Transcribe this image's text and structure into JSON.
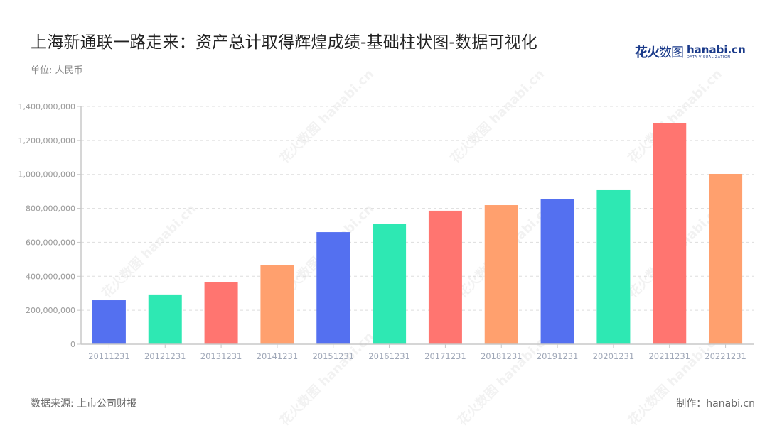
{
  "header": {
    "title": "上海新通联一路走来：资产总计取得辉煌成绩-基础柱状图-数据可视化",
    "unit": "单位: 人民币"
  },
  "logo": {
    "cn_bold": "花火",
    "cn_thin": "数图",
    "en": "hanabi.cn",
    "tagline": "DATA VISUALIZATION"
  },
  "footer": {
    "source": "数据来源: 上市公司财报",
    "credit": "制作：hanabi.cn"
  },
  "colors": {
    "palette": [
      "#5470f0",
      "#2ee8b3",
      "#ff7570",
      "#ffa06e"
    ],
    "axis": "#c8c8c8",
    "grid": "#dddddd",
    "tick_label": "#999999",
    "category_label": "#a0a8b8"
  },
  "chart_data": {
    "type": "bar",
    "title": "上海新通联一路走来：资产总计取得辉煌成绩-基础柱状图-数据可视化",
    "xlabel": "",
    "ylabel": "单位: 人民币",
    "ylim": [
      0,
      1400000000
    ],
    "yticks": [
      0,
      200000000,
      400000000,
      600000000,
      800000000,
      1000000000,
      1200000000,
      1400000000
    ],
    "ytick_labels": [
      "0",
      "200,000,000",
      "400,000,000",
      "600,000,000",
      "800,000,000",
      "1,000,000,000",
      "1,200,000,000",
      "1,400,000,000"
    ],
    "grid": true,
    "legend": "none",
    "categories": [
      "20111231",
      "20121231",
      "20131231",
      "20141231",
      "20151231",
      "20161231",
      "20171231",
      "20181231",
      "20191231",
      "20201231",
      "20211231",
      "20221231"
    ],
    "values": [
      259000000,
      293000000,
      364000000,
      468000000,
      660000000,
      710000000,
      786000000,
      819000000,
      853000000,
      907000000,
      1300000000,
      1003000000
    ],
    "bar_colors": [
      "#5470f0",
      "#2ee8b3",
      "#ff7570",
      "#ffa06e",
      "#5470f0",
      "#2ee8b3",
      "#ff7570",
      "#ffa06e",
      "#5470f0",
      "#2ee8b3",
      "#ff7570",
      "#ffa06e"
    ]
  }
}
